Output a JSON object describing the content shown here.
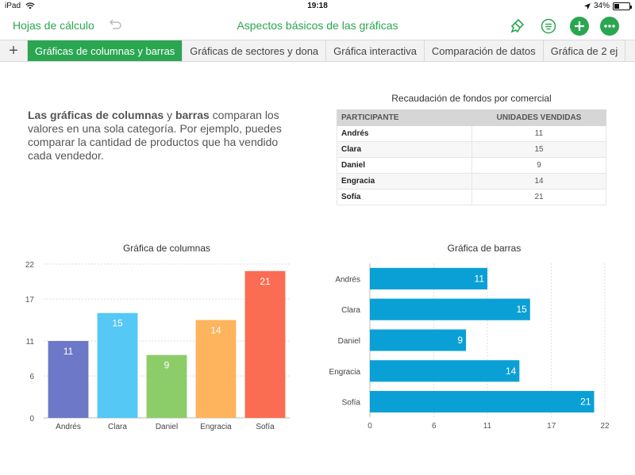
{
  "status": {
    "device": "iPad",
    "time": "19:18",
    "battery": "34%",
    "battery_level": 0.34
  },
  "toolbar": {
    "back_label": "Hojas de cálculo",
    "title": "Aspectos básicos de las gráficas"
  },
  "tabs": [
    {
      "label": "Gráficas de columnas y barras",
      "active": true
    },
    {
      "label": "Gráficas de sectores y dona",
      "active": false
    },
    {
      "label": "Gráfica interactiva",
      "active": false
    },
    {
      "label": "Comparación de datos",
      "active": false
    },
    {
      "label": "Gráfica de 2 ej",
      "active": false
    }
  ],
  "intro": {
    "bold1": "Las gráficas de columnas",
    "t1": " y ",
    "bold2": "barras",
    "t2": " comparan los valores en una sola categoría. Por ejemplo, puedes comparar la cantidad de productos que ha vendido cada vendedor."
  },
  "table": {
    "title": "Recaudación de fondos por comercial",
    "headers": [
      "PARTICIPANTE",
      "UNIDADES VENDIDAS"
    ],
    "rows": [
      [
        "Andrés",
        "11"
      ],
      [
        "Clara",
        "15"
      ],
      [
        "Daniel",
        "9"
      ],
      [
        "Engracia",
        "14"
      ],
      [
        "Sofía",
        "21"
      ]
    ]
  },
  "chart_data": [
    {
      "type": "bar",
      "orientation": "vertical",
      "title": "Gráfica de columnas",
      "categories": [
        "Andrés",
        "Clara",
        "Daniel",
        "Engracia",
        "Sofía"
      ],
      "values": [
        11,
        15,
        9,
        14,
        21
      ],
      "colors": [
        "#6e78c8",
        "#55c8f5",
        "#8ccd6a",
        "#fdb45c",
        "#fb6d52"
      ],
      "yticks": [
        0,
        6,
        11,
        17,
        22
      ],
      "ylim": [
        0,
        22
      ],
      "grid": true
    },
    {
      "type": "bar",
      "orientation": "horizontal",
      "title": "Gráfica de barras",
      "categories": [
        "Andrés",
        "Clara",
        "Daniel",
        "Engracia",
        "Sofía"
      ],
      "values": [
        11,
        15,
        9,
        14,
        21
      ],
      "color": "#0aa0d6",
      "xticks": [
        0,
        6,
        11,
        17,
        22
      ],
      "xlim": [
        0,
        22
      ],
      "grid": true
    }
  ]
}
